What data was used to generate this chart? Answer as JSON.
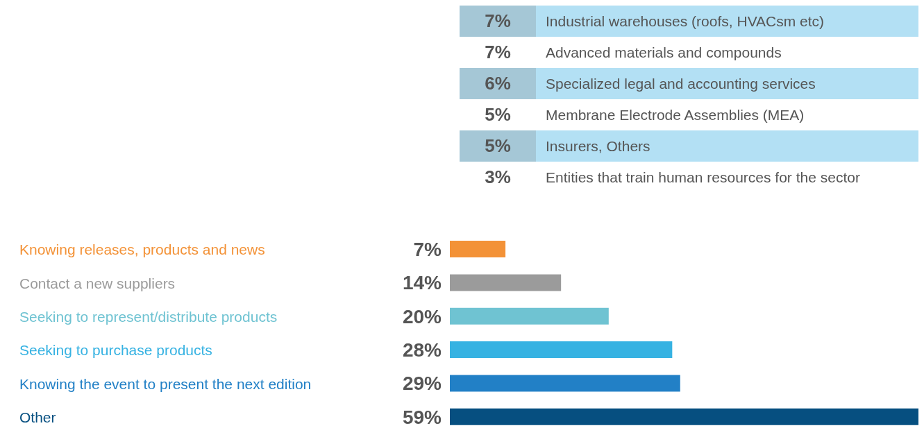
{
  "chart_data": [
    {
      "type": "other",
      "categories": [
        "Industrial warehouses (roofs, HVACsm etc)",
        "Advanced materials and compounds",
        "Specialized legal and accounting services",
        "Membrane Electrode Assemblies (MEA)",
        "Insurers, Others",
        "Entities that train human resources for the sector"
      ],
      "value_labels": [
        "7%",
        "7%",
        "6%",
        "5%",
        "5%",
        "3%"
      ]
    },
    {
      "type": "bar",
      "orientation": "horizontal",
      "categories": [
        "Knowing releases, products and news",
        "Contact a new suppliers",
        "Seeking to represent/distribute products",
        "Seeking to purchase products",
        "Knowing the event to present the next edition",
        "Other"
      ],
      "values": [
        7,
        14,
        20,
        28,
        29,
        59
      ],
      "colors": [
        "#f39237",
        "#9b9b9b",
        "#6fc3d2",
        "#36b2e2",
        "#2280c6",
        "#064f80"
      ],
      "value_labels": [
        "7%",
        "14%",
        "20%",
        "28%",
        "29%",
        "59%"
      ]
    }
  ]
}
